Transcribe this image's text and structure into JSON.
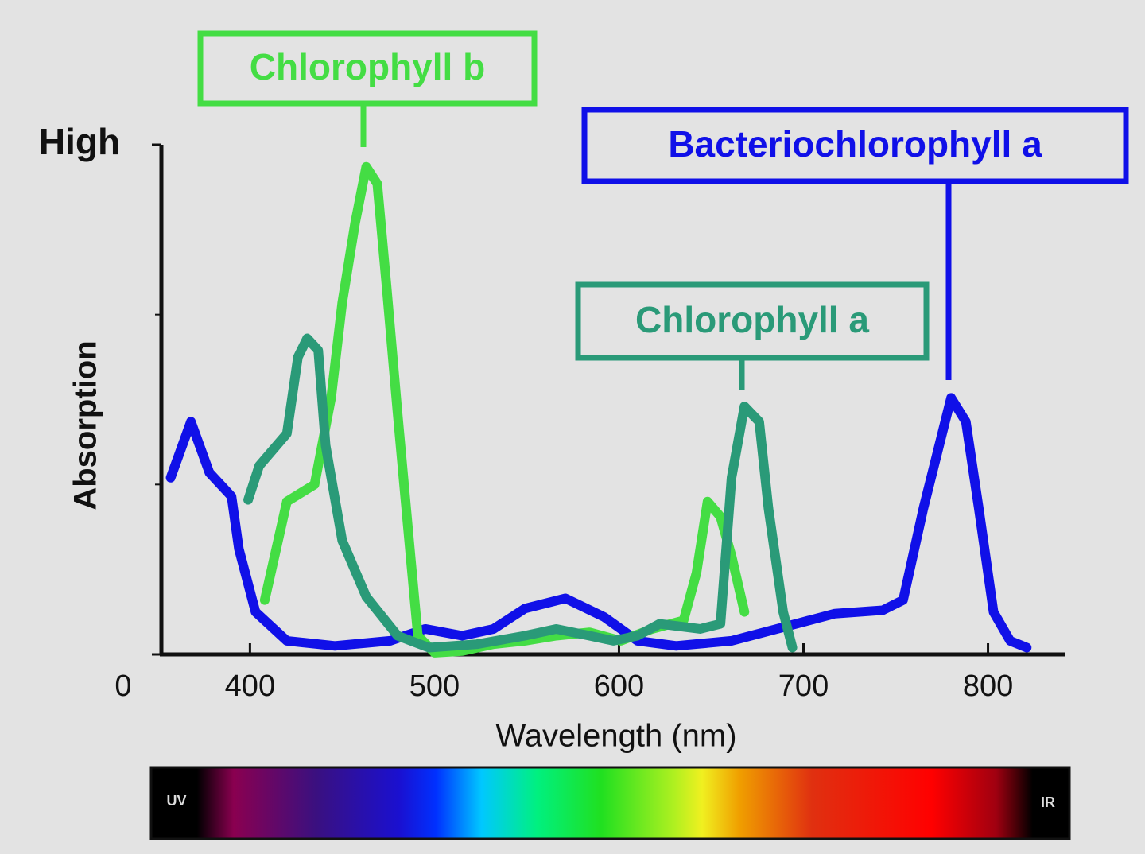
{
  "chart_data": {
    "type": "line",
    "xlabel": "Wavelength (nm)",
    "ylabel": "Absorption",
    "xlim": [
      352,
      842
    ],
    "xticks": [
      400,
      500,
      600,
      700,
      800
    ],
    "ylim": [
      0,
      3
    ],
    "yticks": [
      {
        "value": 0,
        "label": "0"
      },
      {
        "value": 3,
        "label": "High"
      }
    ],
    "yminorticks": [
      1,
      2
    ],
    "series": [
      {
        "name": "Bacteriochlorophyll a",
        "color": "#1010e8",
        "x": [
          357,
          368,
          378,
          390,
          394,
          403,
          420,
          446,
          476,
          495,
          515,
          532,
          549,
          571,
          592,
          610,
          631,
          661,
          696,
          717,
          743,
          754,
          765,
          780,
          788,
          795,
          803,
          812,
          821
        ],
        "values": [
          1.04,
          1.37,
          1.07,
          0.93,
          0.62,
          0.25,
          0.08,
          0.05,
          0.08,
          0.15,
          0.11,
          0.15,
          0.27,
          0.33,
          0.22,
          0.08,
          0.05,
          0.08,
          0.18,
          0.24,
          0.26,
          0.32,
          0.86,
          1.51,
          1.37,
          0.86,
          0.25,
          0.08,
          0.04
        ]
      },
      {
        "name": "Chlorophyll b",
        "color": "#44dd44",
        "x": [
          408,
          420,
          435,
          444,
          450,
          457,
          463,
          469,
          474,
          480,
          487,
          491,
          500,
          515,
          532,
          549,
          566,
          584,
          601,
          618,
          635,
          642,
          648,
          655,
          661,
          668
        ],
        "values": [
          0.32,
          0.9,
          1.0,
          1.51,
          2.07,
          2.54,
          2.87,
          2.77,
          2.17,
          1.42,
          0.58,
          0.11,
          0.01,
          0.02,
          0.06,
          0.08,
          0.11,
          0.13,
          0.08,
          0.15,
          0.2,
          0.48,
          0.9,
          0.81,
          0.58,
          0.25
        ]
      },
      {
        "name": "Chlorophyll a",
        "color": "#2a9a78",
        "x": [
          399,
          405,
          420,
          426,
          431,
          437,
          441,
          450,
          463,
          480,
          497,
          523,
          549,
          566,
          584,
          597,
          610,
          622,
          644,
          655,
          661,
          668,
          676,
          681,
          689,
          694
        ],
        "values": [
          0.91,
          1.11,
          1.3,
          1.75,
          1.86,
          1.79,
          1.23,
          0.67,
          0.34,
          0.11,
          0.04,
          0.06,
          0.11,
          0.15,
          0.11,
          0.08,
          0.11,
          0.18,
          0.15,
          0.18,
          1.04,
          1.46,
          1.37,
          0.86,
          0.25,
          0.04
        ]
      }
    ],
    "annotations": [
      "UV",
      "IR"
    ]
  }
}
